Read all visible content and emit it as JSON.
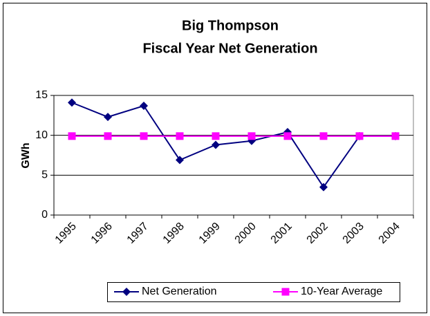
{
  "chart_data": {
    "type": "line",
    "title": [
      "Big Thompson",
      "Fiscal Year Net Generation"
    ],
    "y_label": "GWh",
    "categories": [
      "1995",
      "1996",
      "1997",
      "1998",
      "1999",
      "2000",
      "2001",
      "2002",
      "2003",
      "2004"
    ],
    "series": [
      {
        "name": "Net Generation",
        "color": "#000080",
        "marker": "diamond",
        "values": [
          14.1,
          12.3,
          13.7,
          6.9,
          8.8,
          9.3,
          10.4,
          3.5,
          9.9,
          9.9
        ]
      },
      {
        "name": "10-Year Average",
        "color": "#ff00ff",
        "marker": "square",
        "values": [
          9.9,
          9.9,
          9.9,
          9.9,
          9.9,
          9.9,
          9.9,
          9.9,
          9.9,
          9.9
        ]
      }
    ],
    "ylim": [
      0,
      15
    ],
    "yticks": [
      0,
      5,
      10,
      15
    ],
    "grid": true,
    "legend": "bottom"
  }
}
